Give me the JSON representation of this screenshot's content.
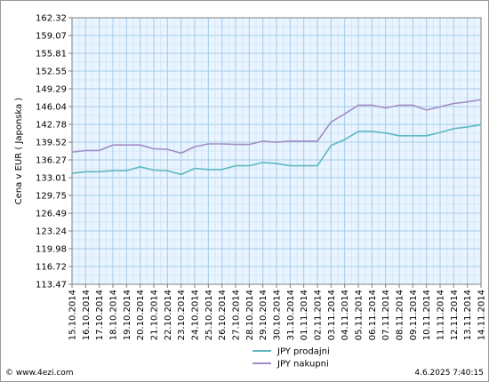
{
  "chart_data": {
    "type": "line",
    "ylabel": "Cena v EUR ( Japonska )",
    "ylim": [
      113.47,
      162.32
    ],
    "yticks": [
      "162.32",
      "159.07",
      "155.81",
      "152.55",
      "149.29",
      "146.04",
      "142.78",
      "139.52",
      "136.27",
      "133.01",
      "129.75",
      "126.49",
      "123.24",
      "119.98",
      "116.72",
      "113.47"
    ],
    "categories": [
      "15.10.2014",
      "16.10.2014",
      "17.10.2014",
      "18.10.2014",
      "19.10.2014",
      "20.10.2014",
      "21.10.2014",
      "22.10.2014",
      "23.10.2014",
      "24.10.2014",
      "25.10.2014",
      "26.10.2014",
      "27.10.2014",
      "28.10.2014",
      "29.10.2014",
      "30.10.2014",
      "31.10.2014",
      "01.11.2014",
      "02.11.2014",
      "03.11.2014",
      "04.11.2014",
      "05.11.2014",
      "06.11.2014",
      "07.11.2014",
      "08.11.2014",
      "09.11.2014",
      "10.11.2014",
      "11.11.2014",
      "12.11.2014",
      "13.11.2014",
      "14.11.2014"
    ],
    "series": [
      {
        "name": "JPY prodajni",
        "color": "#5cb8c2",
        "values": [
          133.8,
          134.1,
          134.1,
          134.3,
          134.3,
          135.0,
          134.4,
          134.3,
          133.6,
          134.7,
          134.5,
          134.5,
          135.2,
          135.2,
          135.8,
          135.6,
          135.2,
          135.2,
          135.2,
          138.9,
          140.0,
          141.5,
          141.5,
          141.2,
          140.7,
          140.7,
          140.7,
          141.3,
          142.0,
          142.3,
          142.7
        ]
      },
      {
        "name": "JPY nakupni",
        "color": "#a28dc4",
        "values": [
          137.7,
          138.0,
          138.0,
          139.0,
          139.0,
          139.0,
          138.3,
          138.2,
          137.5,
          138.7,
          139.2,
          139.2,
          139.1,
          139.1,
          139.7,
          139.5,
          139.7,
          139.7,
          139.7,
          143.2,
          144.7,
          146.3,
          146.3,
          145.8,
          146.3,
          146.3,
          145.4,
          146.0,
          146.6,
          146.9,
          147.3
        ]
      }
    ],
    "grid": true,
    "legend": "bottom-center"
  },
  "footer": {
    "left": "© www.4ezi.com",
    "right": "4.6.2025 7:40:15"
  },
  "colors": {
    "plot_bg": "#e8f4ff",
    "grid_minor": "#d8e7f5",
    "grid_major": "#a8cbe8",
    "border": "#7f7f7f"
  }
}
